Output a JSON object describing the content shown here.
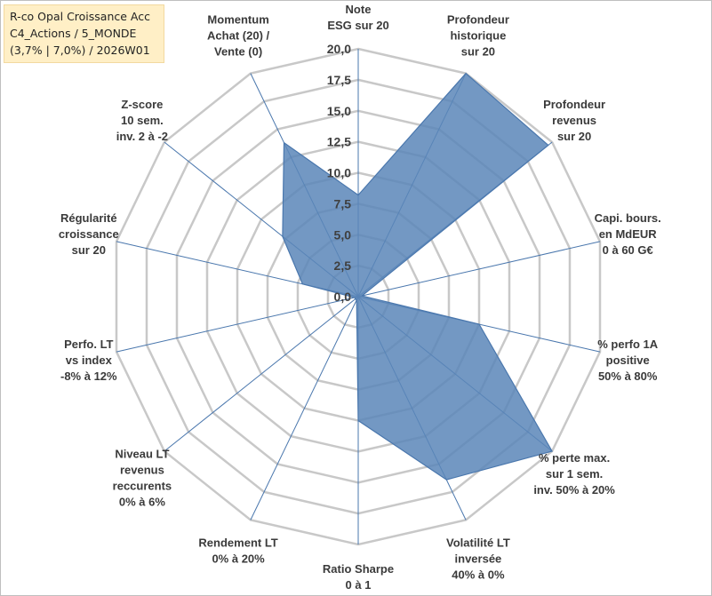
{
  "title_box": {
    "lines": [
      "R-co Opal Croissance Acc",
      "C4_Actions / 5_MONDE",
      "(3,7% | 7,0%) / 2026W01"
    ],
    "background": "#ffefc6"
  },
  "chart_data": {
    "type": "radar",
    "rmin": 0,
    "rmax": 20,
    "ticks": [
      "0,0",
      "2,5",
      "5,0",
      "7,5",
      "10,0",
      "12,5",
      "15,0",
      "17,5",
      "20,0"
    ],
    "tick_values": [
      0,
      2.5,
      5,
      7.5,
      10,
      12.5,
      15,
      17.5,
      20
    ],
    "grid": true,
    "fill_color": "#5b86b8",
    "line_color": "#4a77ad",
    "grid_color": "#c8c8c8",
    "spoke_color": "#4a77ad",
    "axes": [
      {
        "label": [
          "Note",
          "ESG sur 20"
        ],
        "value": 8.2
      },
      {
        "label": [
          "Profondeur",
          "historique",
          "sur 20"
        ],
        "value": 20.0
      },
      {
        "label": [
          "Profondeur",
          "revenus",
          "sur 20"
        ],
        "value": 19.6
      },
      {
        "label": [
          "Capi. bours.",
          "en MdEUR",
          "0 à 60 G€"
        ],
        "value": 0.3
      },
      {
        "label": [
          "% perfo 1A",
          "positive",
          "50% à 80%"
        ],
        "value": 10.0
      },
      {
        "label": [
          "% perte max.",
          "sur 1 sem.",
          "inv. 50% à 20%"
        ],
        "value": 20.0
      },
      {
        "label": [
          "Volatilité LT",
          "inversée",
          "40% à 0%"
        ],
        "value": 16.4
      },
      {
        "label": [
          "Ratio Sharpe",
          "0 à 1"
        ],
        "value": 10.0
      },
      {
        "label": [
          "Rendement LT",
          "0% à 20%"
        ],
        "value": 0.3
      },
      {
        "label": [
          "Niveau LT",
          "revenus",
          "reccurents",
          "0% à 6%"
        ],
        "value": 0.3
      },
      {
        "label": [
          "Perfo. LT",
          "vs index",
          "-8% à 12%"
        ],
        "value": 0.3
      },
      {
        "label": [
          "Régularité",
          "croissance",
          "sur 20"
        ],
        "value": 4.6
      },
      {
        "label": [
          "Z-score",
          "10 sem.",
          "inv. 2 à -2"
        ],
        "value": 7.8
      },
      {
        "label": [
          "Momentum",
          "Achat (20) /",
          "Vente (0)"
        ],
        "value": 13.8
      }
    ]
  }
}
